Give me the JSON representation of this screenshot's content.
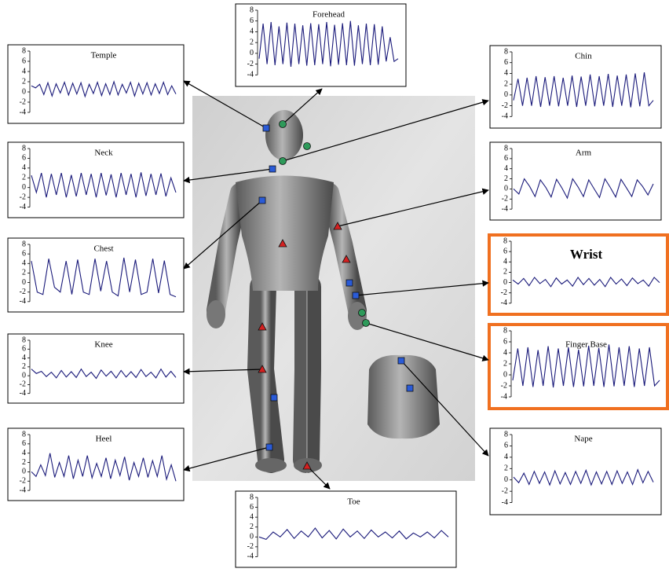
{
  "chart_data": [
    {
      "type": "line",
      "title": "Temple",
      "ylim": [
        -4,
        8
      ],
      "yticks": [
        -4,
        -2,
        0,
        2,
        4,
        6,
        8
      ],
      "color": "#1a1a7a",
      "values": [
        1.2,
        0.8,
        1.5,
        -0.5,
        1.8,
        -0.8,
        1.6,
        -0.2,
        1.9,
        -0.6,
        1.7,
        -0.4,
        1.8,
        -0.9,
        1.5,
        -0.3,
        1.9,
        -0.7,
        1.6,
        -0.5,
        2,
        -0.6,
        1.5,
        -0.2,
        1.9,
        -0.8,
        1.7,
        -0.4,
        1.8,
        -0.6,
        1.6,
        -0.3,
        1.9,
        -0.5,
        1.2,
        -0.4
      ]
    },
    {
      "type": "line",
      "title": "Forehead",
      "ylim": [
        -4,
        8
      ],
      "yticks": [
        -4,
        -2,
        0,
        2,
        4,
        6,
        8
      ],
      "color": "#1a1a7a",
      "values": [
        -1,
        5.5,
        -2,
        5.8,
        -2.2,
        5,
        -2,
        5.7,
        -2.5,
        5.5,
        -2,
        5.2,
        -2.3,
        5.6,
        -2.2,
        5.4,
        -2,
        5.8,
        -2.4,
        5.3,
        -2.1,
        5.6,
        -2.2,
        6,
        -2.3,
        5.2,
        -2,
        5.5,
        -2.2,
        5.4,
        -2.1,
        5,
        -1.5,
        3,
        -1.5,
        -1
      ]
    },
    {
      "type": "line",
      "title": "Chin",
      "ylim": [
        -4,
        8
      ],
      "yticks": [
        -4,
        -2,
        0,
        2,
        4,
        6,
        8
      ],
      "color": "#1a1a7a",
      "values": [
        -1,
        3,
        -2,
        3.2,
        -2,
        3.5,
        -2.2,
        3.3,
        -2,
        3.5,
        -2.1,
        3.2,
        -2,
        3.6,
        -2.2,
        3.4,
        -2,
        3.8,
        -2.1,
        3.5,
        -2,
        3.9,
        -2.2,
        3.6,
        -2,
        3.8,
        -2.3,
        4,
        -2.1,
        4.2,
        -2,
        -1
      ]
    },
    {
      "type": "line",
      "title": "Neck",
      "ylim": [
        -4,
        8
      ],
      "yticks": [
        -4,
        -2,
        0,
        2,
        4,
        6,
        8
      ],
      "color": "#1a1a7a",
      "values": [
        2.5,
        -1,
        3,
        -2,
        2.8,
        -1.5,
        3,
        -2,
        2.6,
        -1.8,
        3,
        -1.5,
        2.8,
        -2,
        3,
        -1.6,
        2.7,
        -2,
        3,
        -1.5,
        2.8,
        -2,
        3.1,
        -1.7,
        2.8,
        -1.5,
        2.9,
        -1.8,
        2,
        -1
      ]
    },
    {
      "type": "line",
      "title": "Arm",
      "ylim": [
        -4,
        8
      ],
      "yticks": [
        -4,
        -2,
        0,
        2,
        4,
        6,
        8
      ],
      "color": "#1a1a7a",
      "values": [
        0,
        -1,
        2,
        0.5,
        -1.5,
        1.8,
        0.3,
        -1.6,
        1.9,
        0.2,
        -1.8,
        2,
        0.4,
        -1.5,
        1.8,
        0,
        -1.7,
        2,
        0.3,
        -1.6,
        1.9,
        0.2,
        -1.5,
        1.8,
        0.5,
        -1.2,
        1
      ]
    },
    {
      "type": "line",
      "title": "Chest",
      "ylim": [
        -4,
        8
      ],
      "yticks": [
        -4,
        -2,
        0,
        2,
        4,
        6,
        8
      ],
      "color": "#1a1a7a",
      "values": [
        4.5,
        -2,
        -2.5,
        5,
        -1,
        -2,
        4.5,
        -2.5,
        4.8,
        -2,
        -2.5,
        5,
        -1.8,
        4.5,
        -2,
        -2.8,
        5.2,
        -2,
        4.8,
        -2.5,
        -2,
        5,
        -2.2,
        4.6,
        -2.5,
        -3
      ]
    },
    {
      "type": "line",
      "title": "Wrist",
      "ylim": [
        -4,
        8
      ],
      "yticks": [
        -4,
        -2,
        0,
        2,
        4,
        6,
        8
      ],
      "color": "#1a1a7a",
      "values": [
        0.5,
        -0.3,
        0.8,
        -0.6,
        1,
        -0.2,
        0.6,
        -0.8,
        0.9,
        -0.3,
        0.5,
        -0.7,
        1,
        -0.4,
        0.8,
        -0.5,
        0.6,
        -0.8,
        1,
        -0.3,
        0.7,
        -0.6,
        0.9,
        -0.2,
        0.5,
        -0.7,
        1,
        0
      ]
    },
    {
      "type": "line",
      "title": "Finger Base",
      "ylim": [
        -4,
        8
      ],
      "yticks": [
        -4,
        -2,
        0,
        2,
        4,
        6,
        8
      ],
      "color": "#1a1a7a",
      "values": [
        -1,
        4.8,
        -2,
        5,
        -2.2,
        4.5,
        -2,
        5.2,
        -2.3,
        4.8,
        -2,
        5,
        -2.2,
        4.6,
        -2.1,
        5.3,
        -2,
        4.9,
        -2.2,
        5.5,
        -2.1,
        5,
        -2,
        5.2,
        -2.2,
        4.8,
        -2,
        5,
        -2,
        -1
      ]
    },
    {
      "type": "line",
      "title": "Knee",
      "ylim": [
        -4,
        8
      ],
      "yticks": [
        -4,
        -2,
        0,
        2,
        4,
        6,
        8
      ],
      "color": "#1a1a7a",
      "values": [
        1.5,
        0.5,
        1,
        -0.2,
        0.8,
        -0.5,
        1.2,
        -0.3,
        0.9,
        -0.4,
        1.5,
        -0.2,
        0.8,
        -0.6,
        1.3,
        -0.1,
        1,
        -0.5,
        1.2,
        -0.3,
        0.9,
        -0.4,
        1.4,
        -0.2,
        0.8,
        -0.5,
        1.5,
        -0.3,
        1,
        -0.4
      ]
    },
    {
      "type": "line",
      "title": "Heel",
      "ylim": [
        -4,
        8
      ],
      "yticks": [
        -4,
        -2,
        0,
        2,
        4,
        6,
        8
      ],
      "color": "#1a1a7a",
      "values": [
        0,
        -1,
        1.5,
        -0.8,
        4,
        -1.2,
        2,
        -1,
        3.5,
        -1.5,
        2.5,
        -1,
        3.5,
        -1.3,
        1.8,
        -1,
        3,
        -1.5,
        2.5,
        -0.8,
        3.2,
        -1.8,
        2,
        -1,
        3,
        -1.2,
        2.4,
        -1,
        3.5,
        -1.6,
        1.5,
        -2
      ]
    },
    {
      "type": "line",
      "title": "Nape",
      "ylim": [
        -4,
        8
      ],
      "yticks": [
        -4,
        -2,
        0,
        2,
        4,
        6,
        8
      ],
      "color": "#1a1a7a",
      "values": [
        0.5,
        -0.5,
        1.2,
        -0.8,
        1.5,
        -0.6,
        1.4,
        -0.9,
        1.6,
        -0.7,
        1.3,
        -0.8,
        1.5,
        -0.6,
        1.7,
        -0.9,
        1.4,
        -0.7,
        1.5,
        -0.8,
        1.6,
        -0.6,
        1.4,
        -0.8,
        1.8,
        -0.5,
        1.5,
        -0.4
      ]
    },
    {
      "type": "line",
      "title": "Toe",
      "ylim": [
        -4,
        8
      ],
      "yticks": [
        -4,
        -2,
        0,
        2,
        4,
        6,
        8
      ],
      "color": "#1a1a7a",
      "values": [
        0,
        -0.5,
        1,
        0,
        1.5,
        -0.3,
        1.2,
        0,
        1.8,
        -0.2,
        1.3,
        -0.4,
        1.6,
        0,
        1.2,
        -0.3,
        1.4,
        0,
        1,
        -0.2,
        1.2,
        -0.4,
        0.8,
        0,
        1,
        -0.2,
        1.3,
        0
      ]
    }
  ]
}
